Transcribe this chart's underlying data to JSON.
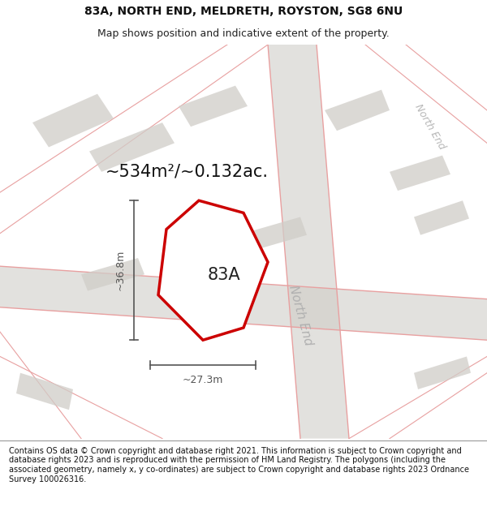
{
  "title": "83A, NORTH END, MELDRETH, ROYSTON, SG8 6NU",
  "subtitle": "Map shows position and indicative extent of the property.",
  "area_text": "~534m²/~0.132ac.",
  "label_83A": "83A",
  "dim_vertical": "~36.8m",
  "dim_horizontal": "~27.3m",
  "road_label_center": "North End",
  "road_label_topright": "North End",
  "footer": "Contains OS data © Crown copyright and database right 2021. This information is subject to Crown copyright and database rights 2023 and is reproduced with the permission of HM Land Registry. The polygons (including the associated geometry, namely x, y co-ordinates) are subject to Crown copyright and database rights 2023 Ordnance Survey 100026316.",
  "map_bg": "#f2f0ed",
  "road_fill": "#d0cdc8",
  "road_line_color": "#e8a0a0",
  "property_color": "#cc0000",
  "dim_color": "#555555",
  "title_fontsize": 10,
  "subtitle_fontsize": 9,
  "area_fontsize": 15,
  "label_fontsize": 15,
  "footer_fontsize": 7.0,
  "road_label_fontsize": 11,
  "title_weight": "normal"
}
